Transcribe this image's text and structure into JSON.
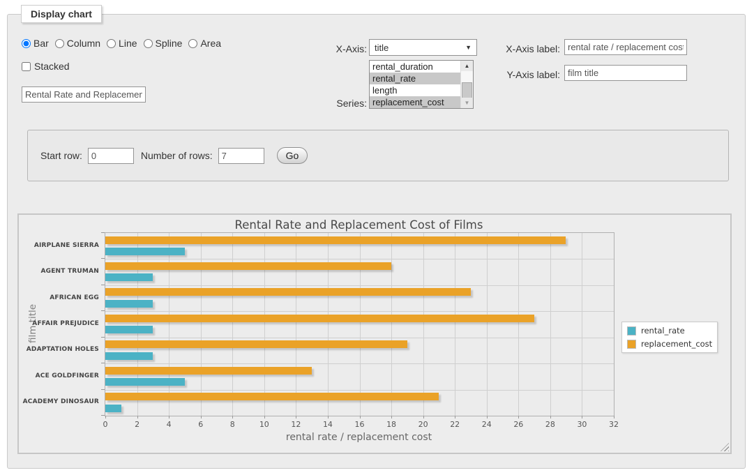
{
  "fieldset": {
    "legend": "Display chart"
  },
  "controls": {
    "chart_types": {
      "options": [
        "Bar",
        "Column",
        "Line",
        "Spline",
        "Area"
      ],
      "selected": "Bar"
    },
    "stacked": {
      "label": "Stacked",
      "checked": false
    },
    "chart_title_value": "Rental Rate and Replacement Cost of Films",
    "x_axis": {
      "label": "X-Axis:",
      "selected": "title"
    },
    "series": {
      "label": "Series:",
      "options": [
        {
          "label": "rental_duration",
          "selected": false
        },
        {
          "label": "rental_rate",
          "selected": true
        },
        {
          "label": "length",
          "selected": false
        },
        {
          "label": "replacement_cost",
          "selected": true
        }
      ]
    },
    "x_axis_label": {
      "label": "X-Axis label:",
      "value": "rental rate / replacement cost"
    },
    "y_axis_label": {
      "label": "Y-Axis label:",
      "value": "film title"
    },
    "pagination": {
      "start_row_label": "Start row:",
      "start_row_value": "0",
      "number_of_rows_label": "Number of rows:",
      "number_of_rows_value": "7",
      "go_label": "Go"
    }
  },
  "chart_data": {
    "type": "bar",
    "orientation": "horizontal",
    "title": "Rental Rate and Replacement Cost of Films",
    "categories_top_to_bottom": [
      "AIRPLANE SIERRA",
      "AGENT TRUMAN",
      "AFRICAN EGG",
      "AFFAIR PREJUDICE",
      "ADAPTATION HOLES",
      "ACE GOLDFINGER",
      "ACADEMY DINOSAUR"
    ],
    "series": [
      {
        "name": "rental_rate",
        "color": "#4bb2c5",
        "values": [
          4.99,
          2.99,
          2.99,
          2.99,
          2.99,
          4.99,
          0.99
        ]
      },
      {
        "name": "replacement_cost",
        "color": "#eaa228",
        "values": [
          28.99,
          17.99,
          22.99,
          26.99,
          18.99,
          12.99,
          20.99
        ]
      }
    ],
    "xlabel": "rental rate / replacement cost",
    "ylabel": "film title",
    "xlim": [
      0,
      32
    ],
    "x_tick_step": 2,
    "grid": true,
    "legend_position": "right"
  }
}
